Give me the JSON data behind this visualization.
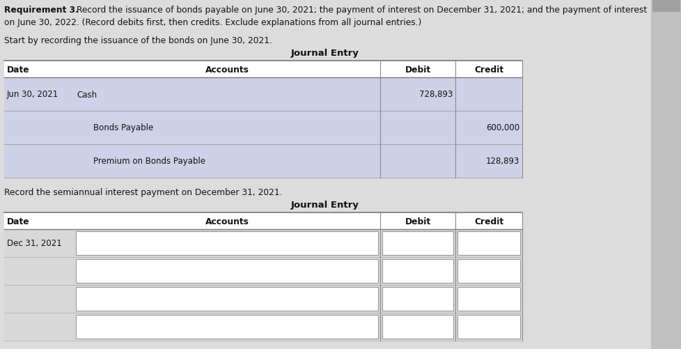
{
  "title_bold": "Requirement 3.",
  "title_line1_rest": " Record the issuance of bonds payable on June 30, 2021; the payment of interest on December 31, 2021; and the payment of interest",
  "title_line2": "on June 30, 2022. (Record debits first, then credits. Exclude explanations from all journal entries.)",
  "subtitle1": "Start by recording the issuance of the bonds on June 30, 2021.",
  "subtitle2": "Record the semiannual interest payment on December 31, 2021.",
  "journal_entry_label": "Journal Entry",
  "table1_rows": [
    {
      "date": "Jun 30, 2021",
      "account": "Cash",
      "debit": "728,893",
      "credit": "",
      "indent": false
    },
    {
      "date": "",
      "account": "Bonds Payable",
      "debit": "",
      "credit": "600,000",
      "indent": true
    },
    {
      "date": "",
      "account": "Premium on Bonds Payable",
      "debit": "",
      "credit": "128,893",
      "indent": true
    }
  ],
  "table2_rows": [
    {
      "date": "Dec 31, 2021"
    },
    {
      "date": ""
    },
    {
      "date": ""
    },
    {
      "date": ""
    }
  ],
  "bg_color": "#dcdcdc",
  "table_bg": "#ffffff",
  "highlight_color": "#ced2e8",
  "text_color": "#111111",
  "line_color": "#777777",
  "scrollbar_color": "#b0b0b0",
  "fontsize_body": 8.5,
  "fontsize_header": 8.8,
  "fontsize_title": 8.8
}
